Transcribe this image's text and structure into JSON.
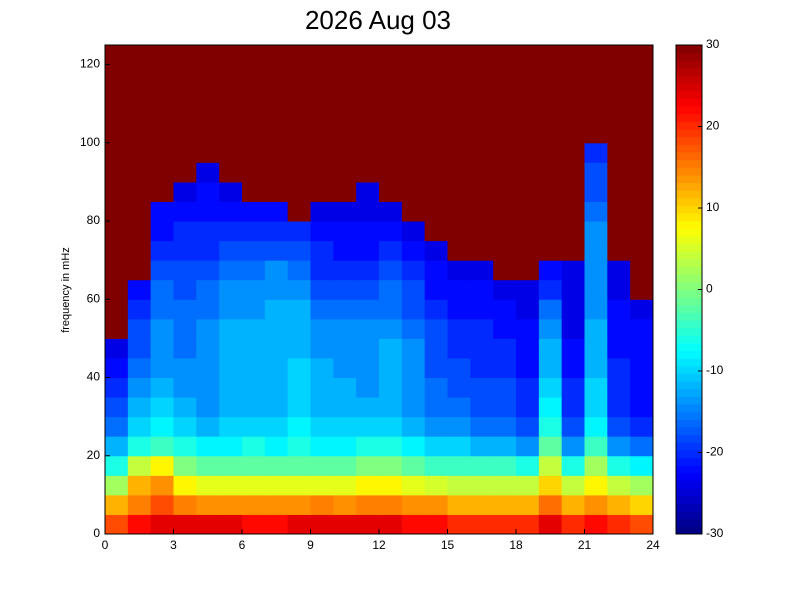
{
  "chart_data": {
    "type": "heatmap",
    "title": "2026 Aug 03",
    "ylabel": "frequency in mHz",
    "colormap": "jet",
    "xlim": [
      0,
      24
    ],
    "ylim": [
      0,
      125
    ],
    "xticks": [
      0,
      3,
      6,
      9,
      12,
      15,
      18,
      21,
      24
    ],
    "yticks": [
      0,
      20,
      40,
      60,
      80,
      100,
      120
    ],
    "clim": [
      -30,
      30
    ],
    "cticks": [
      -30,
      -20,
      -10,
      0,
      10,
      20,
      30
    ],
    "xbins": [
      0,
      1,
      2,
      3,
      4,
      5,
      6,
      7,
      8,
      9,
      10,
      11,
      12,
      13,
      14,
      15,
      16,
      17,
      18,
      19,
      20,
      21,
      22,
      23,
      24
    ],
    "ybins": [
      0,
      5,
      10,
      15,
      20,
      25,
      30,
      35,
      40,
      45,
      50,
      55,
      60,
      65,
      70,
      75,
      80,
      85,
      90,
      95,
      100,
      105,
      110,
      115,
      120,
      125
    ],
    "z": [
      [
        18,
        22,
        24,
        24,
        24,
        24,
        22,
        22,
        24,
        24,
        24,
        24,
        24,
        22,
        22,
        20,
        20,
        20,
        20,
        24,
        20,
        22,
        20,
        18
      ],
      [
        12,
        15,
        18,
        15,
        14,
        14,
        14,
        14,
        14,
        15,
        14,
        15,
        15,
        14,
        14,
        12,
        12,
        12,
        12,
        16,
        12,
        14,
        12,
        10
      ],
      [
        2,
        12,
        14,
        8,
        6,
        6,
        6,
        6,
        6,
        6,
        6,
        8,
        8,
        6,
        5,
        4,
        4,
        4,
        4,
        10,
        4,
        8,
        4,
        2
      ],
      [
        -6,
        4,
        8,
        0,
        -2,
        -2,
        -2,
        -2,
        -2,
        -2,
        -2,
        0,
        0,
        -2,
        -4,
        -4,
        -4,
        -4,
        -6,
        4,
        -6,
        2,
        -6,
        -8
      ],
      [
        -12,
        -6,
        -4,
        -6,
        -8,
        -8,
        -6,
        -8,
        -6,
        -8,
        -8,
        -6,
        -6,
        -8,
        -10,
        -10,
        -12,
        -12,
        -14,
        -2,
        -14,
        -4,
        -14,
        -16
      ],
      [
        -16,
        -10,
        -8,
        -10,
        -12,
        -10,
        -10,
        -10,
        -8,
        -10,
        -10,
        -10,
        -10,
        -12,
        -14,
        -14,
        -16,
        -16,
        -18,
        -6,
        -18,
        -8,
        -18,
        -20
      ],
      [
        -18,
        -12,
        -10,
        -12,
        -14,
        -12,
        -12,
        -12,
        -10,
        -12,
        -12,
        -12,
        -12,
        -14,
        -16,
        -16,
        -18,
        -18,
        -20,
        -8,
        -20,
        -10,
        -20,
        -22
      ],
      [
        -20,
        -14,
        -12,
        -14,
        -14,
        -12,
        -12,
        -12,
        -10,
        -12,
        -12,
        -14,
        -12,
        -14,
        -16,
        -18,
        -18,
        -18,
        -20,
        -10,
        -20,
        -10,
        -20,
        -22
      ],
      [
        -22,
        -16,
        -14,
        -14,
        -14,
        -12,
        -12,
        -12,
        -10,
        -12,
        -14,
        -14,
        -12,
        -14,
        -18,
        -18,
        -20,
        -20,
        -22,
        -12,
        -22,
        -12,
        -20,
        -22
      ],
      [
        -24,
        -18,
        -14,
        -16,
        -14,
        -12,
        -12,
        -12,
        -12,
        -14,
        -14,
        -14,
        -12,
        -14,
        -18,
        -20,
        -20,
        -20,
        -22,
        -12,
        -22,
        -12,
        -22,
        -22
      ],
      [
        30,
        -18,
        -14,
        -16,
        -14,
        -12,
        -12,
        -12,
        -12,
        -14,
        -14,
        -14,
        -14,
        -16,
        -18,
        -20,
        -20,
        -22,
        -22,
        -14,
        -24,
        -12,
        -22,
        -22
      ],
      [
        30,
        -20,
        -16,
        -16,
        -16,
        -14,
        -14,
        -12,
        -12,
        -16,
        -16,
        -16,
        -16,
        -18,
        -20,
        -22,
        -22,
        -22,
        -24,
        -16,
        -24,
        -14,
        -22,
        -24
      ],
      [
        30,
        -22,
        -16,
        -18,
        -16,
        -14,
        -14,
        -14,
        -14,
        -18,
        -18,
        -18,
        -16,
        -18,
        -22,
        -22,
        -22,
        -24,
        -24,
        -20,
        -24,
        -14,
        -24,
        30
      ],
      [
        30,
        30,
        -18,
        -18,
        -18,
        -16,
        -16,
        -14,
        -16,
        -20,
        -20,
        -20,
        -18,
        -20,
        -22,
        -24,
        -24,
        30,
        30,
        -22,
        -24,
        -14,
        -24,
        30
      ],
      [
        30,
        30,
        -20,
        -20,
        -20,
        -18,
        -18,
        -18,
        -18,
        -20,
        -22,
        -22,
        -20,
        -22,
        -24,
        30,
        30,
        30,
        30,
        30,
        30,
        -14,
        30,
        30
      ],
      [
        30,
        30,
        -22,
        -20,
        -20,
        -20,
        -20,
        -20,
        -20,
        -22,
        -22,
        -22,
        -22,
        -24,
        30,
        30,
        30,
        30,
        30,
        30,
        30,
        -14,
        30,
        30
      ],
      [
        30,
        30,
        -22,
        -22,
        -22,
        -22,
        -22,
        -22,
        30,
        -24,
        -24,
        -24,
        -24,
        30,
        30,
        30,
        30,
        30,
        30,
        30,
        30,
        -16,
        30,
        30
      ],
      [
        30,
        30,
        30,
        -24,
        -22,
        -24,
        30,
        30,
        30,
        30,
        30,
        -24,
        30,
        30,
        30,
        30,
        30,
        30,
        30,
        30,
        30,
        -18,
        30,
        30
      ],
      [
        30,
        30,
        30,
        30,
        -24,
        30,
        30,
        30,
        30,
        30,
        30,
        30,
        30,
        30,
        30,
        30,
        30,
        30,
        30,
        30,
        30,
        -18,
        30,
        30
      ],
      [
        30,
        30,
        30,
        30,
        30,
        30,
        30,
        30,
        30,
        30,
        30,
        30,
        30,
        30,
        30,
        30,
        30,
        30,
        30,
        30,
        30,
        -20,
        30,
        30
      ],
      [
        30,
        30,
        30,
        30,
        30,
        30,
        30,
        30,
        30,
        30,
        30,
        30,
        30,
        30,
        30,
        30,
        30,
        30,
        30,
        30,
        30,
        30,
        30,
        30
      ],
      [
        30,
        30,
        30,
        30,
        30,
        30,
        30,
        30,
        30,
        30,
        30,
        30,
        30,
        30,
        30,
        30,
        30,
        30,
        30,
        30,
        30,
        30,
        30,
        30
      ],
      [
        30,
        30,
        30,
        30,
        30,
        30,
        30,
        30,
        30,
        30,
        30,
        30,
        30,
        30,
        30,
        30,
        30,
        30,
        30,
        30,
        30,
        30,
        30,
        30
      ],
      [
        30,
        30,
        30,
        30,
        30,
        30,
        30,
        30,
        30,
        30,
        30,
        30,
        30,
        30,
        30,
        30,
        30,
        30,
        30,
        30,
        30,
        30,
        30,
        30
      ],
      [
        30,
        30,
        30,
        30,
        30,
        30,
        30,
        30,
        30,
        30,
        30,
        30,
        30,
        30,
        30,
        30,
        30,
        30,
        30,
        30,
        30,
        30,
        30,
        30
      ]
    ]
  }
}
